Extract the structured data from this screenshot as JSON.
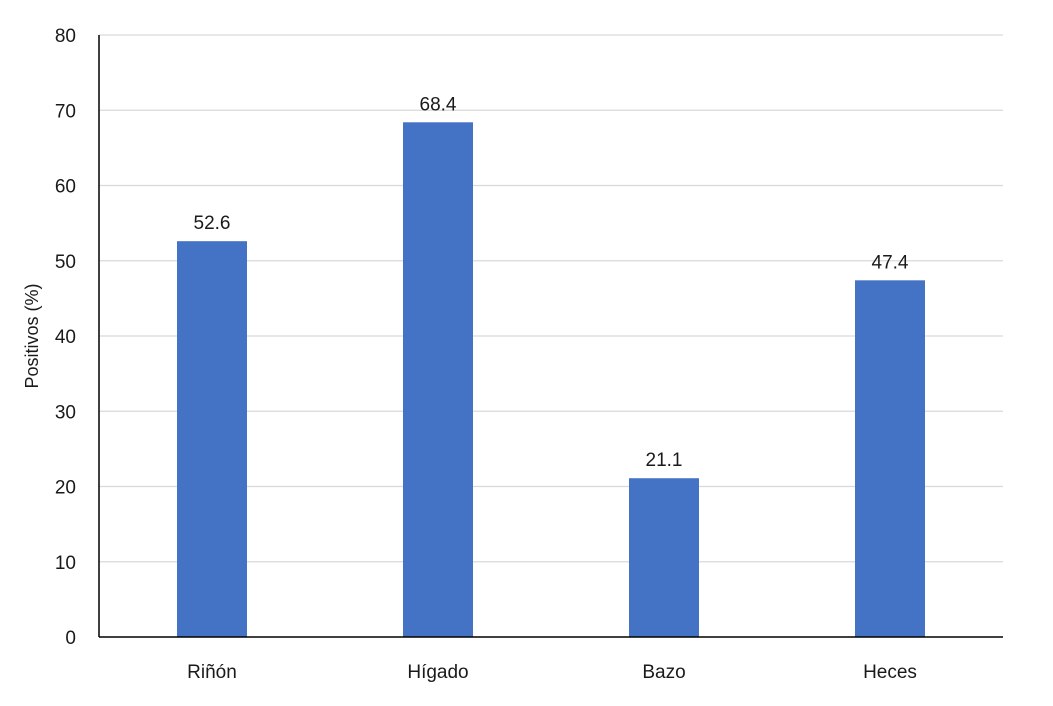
{
  "chart_data": {
    "type": "bar",
    "categories": [
      "Riñón",
      "Hígado",
      "Bazo",
      "Heces"
    ],
    "values": [
      52.6,
      68.4,
      21.1,
      47.4
    ],
    "data_labels": [
      "52.6",
      "68.4",
      "21.1",
      "47.4"
    ],
    "title": "",
    "xlabel": "",
    "ylabel": "Positivos (%)",
    "ylim": [
      0,
      80
    ],
    "yticks": [
      0,
      10,
      20,
      30,
      40,
      50,
      60,
      70,
      80
    ],
    "ytick_labels": [
      "0",
      "10",
      "20",
      "30",
      "40",
      "50",
      "60",
      "70",
      "80"
    ],
    "grid": true,
    "legend": "none",
    "colors": {
      "bar": "#4472c4",
      "grid": "#d9d9d9",
      "axis": "#000000"
    }
  }
}
